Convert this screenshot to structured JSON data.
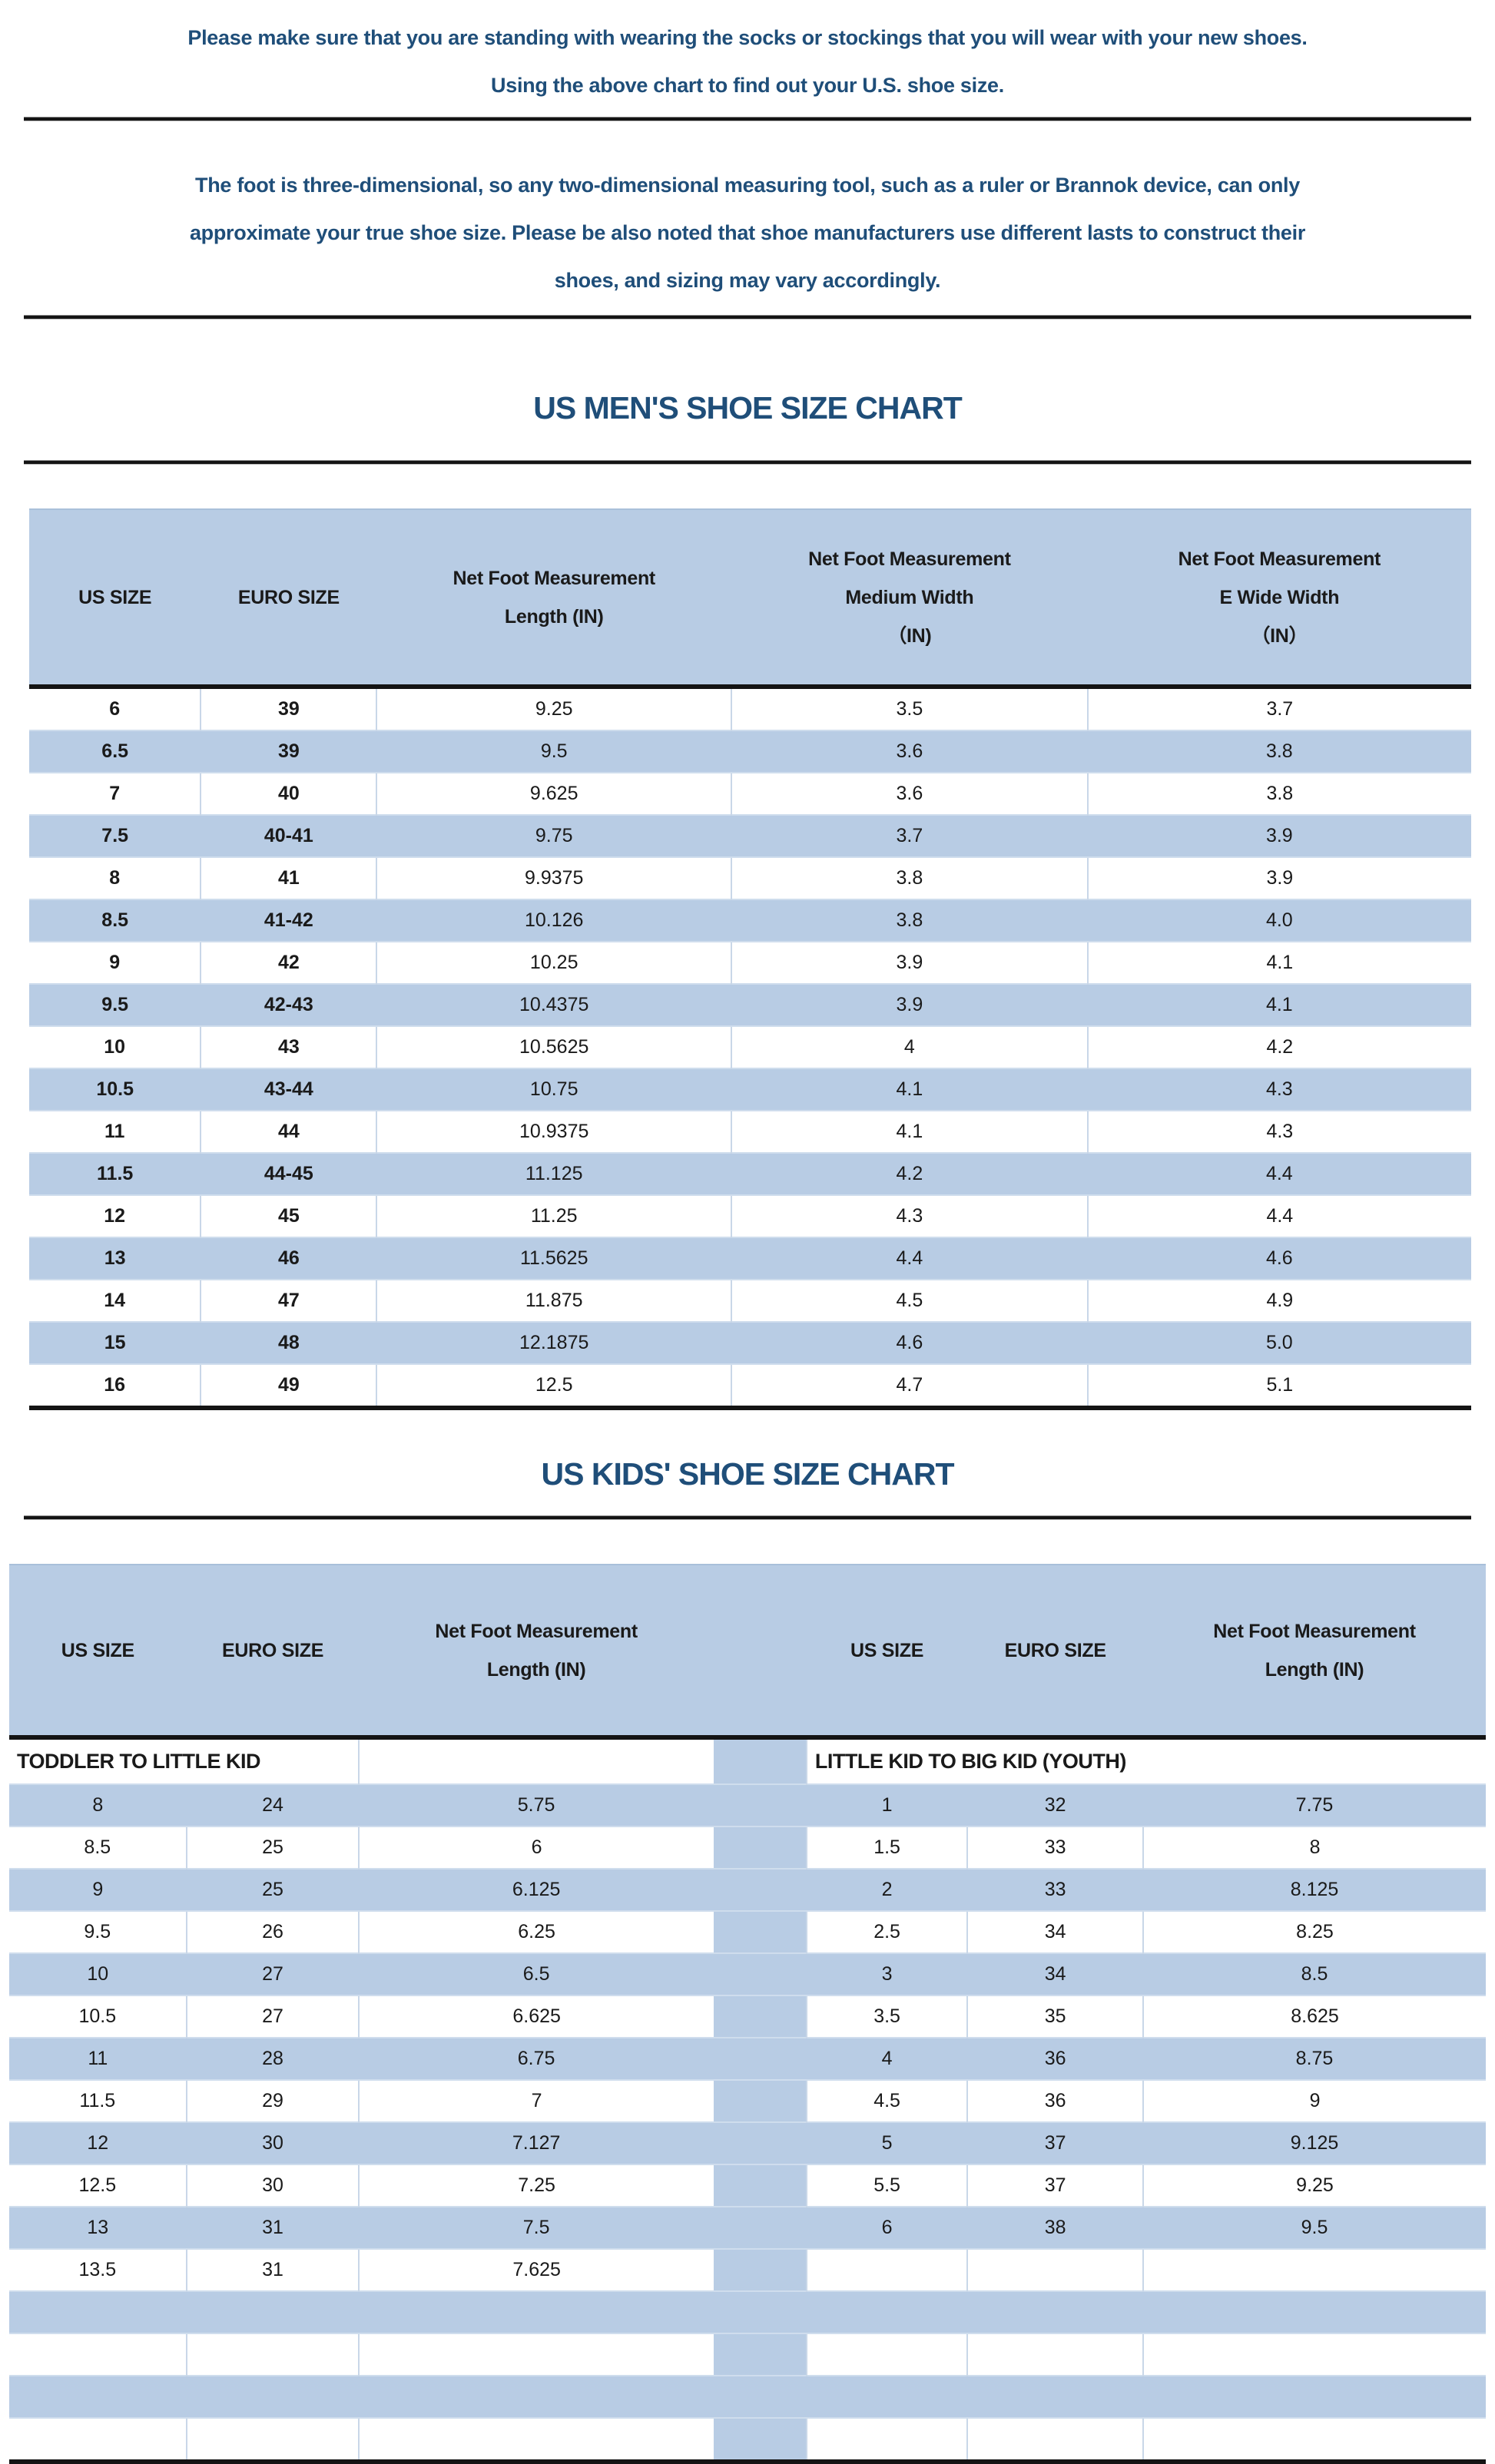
{
  "theme": {
    "accent_blue": "#b8cce4",
    "text_navy": "#1f4e79",
    "rule_black": "#141414"
  },
  "intro": {
    "note": "Please make sure that you are standing with wearing the socks or stockings that you will wear with your new shoes.\nUsing the above chart to find out your U.S. shoe size.",
    "disclaimer": "The foot is three-dimensional, so any two-dimensional measuring tool, such as a ruler or Brannok device, can only\napproximate your true shoe size. Please be also noted that shoe manufacturers use different lasts to construct their\nshoes, and sizing may vary accordingly."
  },
  "mens_chart": {
    "title": "US MEN'S SHOE SIZE CHART",
    "columns": [
      "US SIZE",
      "EURO SIZE",
      "Net Foot Measurement\nLength (IN)",
      "Net Foot Measurement\nMedium Width\n（IN)",
      "Net Foot Measurement\nE Wide Width\n（IN）"
    ],
    "rows": [
      [
        "6",
        "39",
        "9.25",
        "3.5",
        "3.7"
      ],
      [
        "6.5",
        "39",
        "9.5",
        "3.6",
        "3.8"
      ],
      [
        "7",
        "40",
        "9.625",
        "3.6",
        "3.8"
      ],
      [
        "7.5",
        "40-41",
        "9.75",
        "3.7",
        "3.9"
      ],
      [
        "8",
        "41",
        "9.9375",
        "3.8",
        "3.9"
      ],
      [
        "8.5",
        "41-42",
        "10.126",
        "3.8",
        "4.0"
      ],
      [
        "9",
        "42",
        "10.25",
        "3.9",
        "4.1"
      ],
      [
        "9.5",
        "42-43",
        "10.4375",
        "3.9",
        "4.1"
      ],
      [
        "10",
        "43",
        "10.5625",
        "4",
        "4.2"
      ],
      [
        "10.5",
        "43-44",
        "10.75",
        "4.1",
        "4.3"
      ],
      [
        "11",
        "44",
        "10.9375",
        "4.1",
        "4.3"
      ],
      [
        "11.5",
        "44-45",
        "11.125",
        "4.2",
        "4.4"
      ],
      [
        "12",
        "45",
        "11.25",
        "4.3",
        "4.4"
      ],
      [
        "13",
        "46",
        "11.5625",
        "4.4",
        "4.6"
      ],
      [
        "14",
        "47",
        "11.875",
        "4.5",
        "4.9"
      ],
      [
        "15",
        "48",
        "12.1875",
        "4.6",
        "5.0"
      ],
      [
        "16",
        "49",
        "12.5",
        "4.7",
        "5.1"
      ]
    ]
  },
  "kids_chart": {
    "title": "US KIDS' SHOE SIZE CHART",
    "columns_left": [
      "US SIZE",
      "EURO SIZE",
      "Net Foot Measurement\nLength (IN)"
    ],
    "columns_right": [
      "US SIZE",
      "EURO SIZE",
      "Net Foot Measurement\nLength (IN)"
    ],
    "left_section_label": "TODDLER TO LITTLE KID",
    "right_section_label": "LITTLE KID TO BIG KID (YOUTH)",
    "left_rows": [
      [
        "8",
        "24",
        "5.75"
      ],
      [
        "8.5",
        "25",
        "6"
      ],
      [
        "9",
        "25",
        "6.125"
      ],
      [
        "9.5",
        "26",
        "6.25"
      ],
      [
        "10",
        "27",
        "6.5"
      ],
      [
        "10.5",
        "27",
        "6.625"
      ],
      [
        "11",
        "28",
        "6.75"
      ],
      [
        "11.5",
        "29",
        "7"
      ],
      [
        "12",
        "30",
        "7.127"
      ],
      [
        "12.5",
        "30",
        "7.25"
      ],
      [
        "13",
        "31",
        "7.5"
      ],
      [
        "13.5",
        "31",
        "7.625"
      ]
    ],
    "right_rows": [
      [
        "1",
        "32",
        "7.75"
      ],
      [
        "1.5",
        "33",
        "8"
      ],
      [
        "2",
        "33",
        "8.125"
      ],
      [
        "2.5",
        "34",
        "8.25"
      ],
      [
        "3",
        "34",
        "8.5"
      ],
      [
        "3.5",
        "35",
        "8.625"
      ],
      [
        "4",
        "36",
        "8.75"
      ],
      [
        "4.5",
        "36",
        "9"
      ],
      [
        "5",
        "37",
        "9.125"
      ],
      [
        "5.5",
        "37",
        "9.25"
      ],
      [
        "6",
        "38",
        "9.5"
      ],
      [
        "",
        "",
        ""
      ]
    ],
    "trailing_empty_rows": 4
  }
}
